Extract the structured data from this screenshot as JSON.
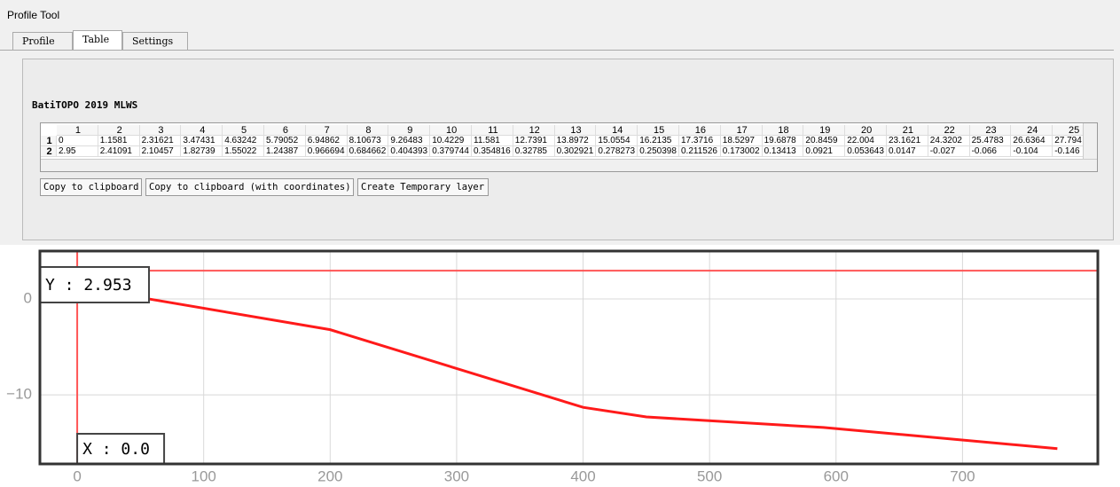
{
  "window_title": "Profile Tool",
  "tabs": [
    "Profile",
    "Table",
    "Settings"
  ],
  "active_tab": 1,
  "layer_name": "BatiTOPO 2019 MLWS",
  "table": {
    "columns": [
      "1",
      "2",
      "3",
      "4",
      "5",
      "6",
      "7",
      "8",
      "9",
      "10",
      "11",
      "12",
      "13",
      "14",
      "15",
      "16",
      "17",
      "18",
      "19",
      "20",
      "21",
      "22",
      "23",
      "24",
      "25"
    ],
    "row_headers": [
      "1",
      "2"
    ],
    "rows": [
      [
        "0",
        "1.1581",
        "2.31621",
        "3.47431",
        "4.63242",
        "5.79052",
        "6.94862",
        "8.10673",
        "9.26483",
        "10.4229",
        "11.581",
        "12.7391",
        "13.8972",
        "15.0554",
        "16.2135",
        "17.3716",
        "18.5297",
        "19.6878",
        "20.8459",
        "22.004",
        "23.1621",
        "24.3202",
        "25.4783",
        "26.6364",
        "27.794"
      ],
      [
        "2.95",
        "2.41091",
        "2.10457",
        "1.82739",
        "1.55022",
        "1.24387",
        "0.966694",
        "0.684662",
        "0.404393",
        "0.379744",
        "0.354816",
        "0.32785",
        "0.302921",
        "0.278273",
        "0.250398",
        "0.211526",
        "0.173002",
        "0.13413",
        "0.0921",
        "0.053643",
        "0.0147",
        "-0.027",
        "-0.066",
        "-0.104",
        "-0.146"
      ]
    ]
  },
  "buttons": [
    "Copy to clipboard",
    "Copy to clipboard (with coordinates)",
    "Create Temporary layer"
  ],
  "chart_data": {
    "type": "line",
    "x": [
      0,
      5,
      10,
      30,
      200,
      400,
      450,
      590,
      775
    ],
    "values": [
      2.95,
      2.0,
      1.2,
      0.6,
      -3.2,
      -11.3,
      -12.3,
      -13.4,
      -15.6
    ],
    "color": "#ff1a1a",
    "xlim": [
      -29.5,
      807
    ],
    "ylim": [
      -17.2,
      5
    ],
    "xticks": [
      0,
      100,
      200,
      300,
      400,
      500,
      600,
      700
    ],
    "yticks": [
      0,
      {
        "value": -10,
        "label": "−10"
      }
    ],
    "grid": true,
    "cursor": {
      "x": 0,
      "y": 2.953,
      "x_label": "X : 0.0",
      "y_label": "Y : 2.953",
      "color": "#ff5555"
    }
  }
}
